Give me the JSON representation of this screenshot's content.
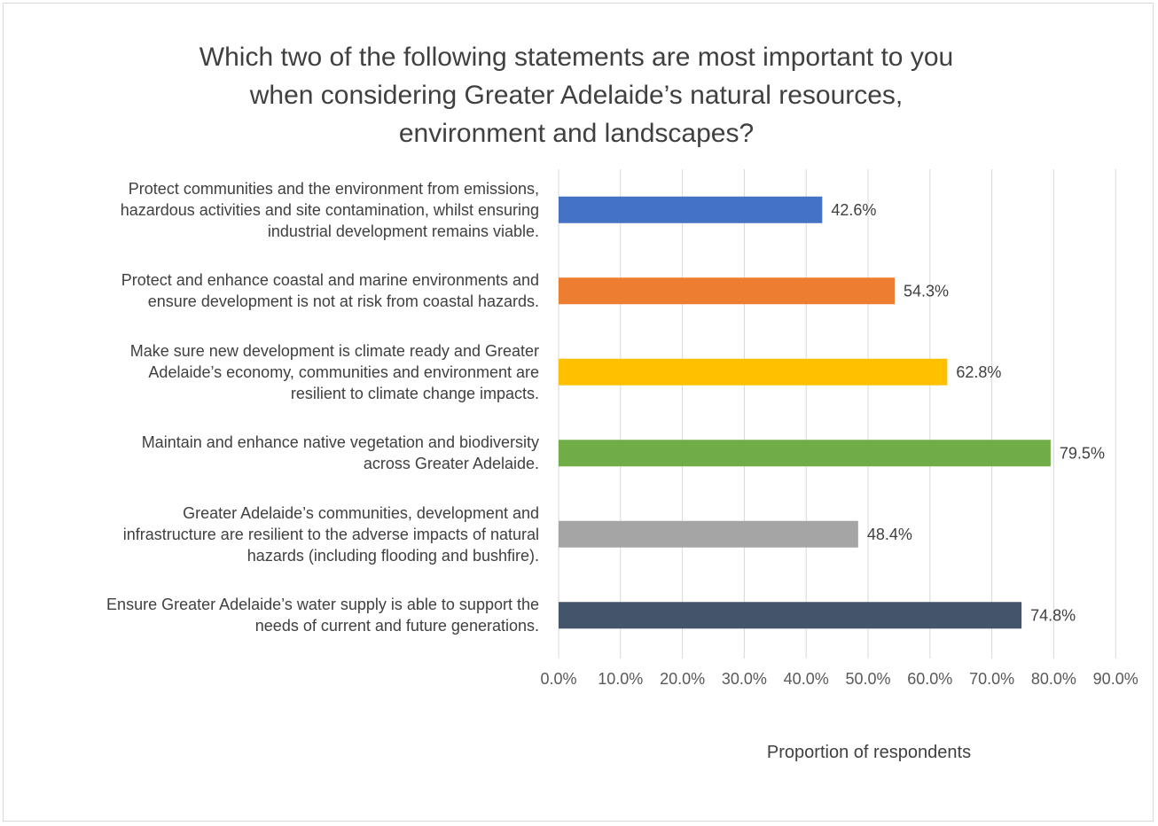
{
  "chart_data": {
    "type": "bar",
    "orientation": "horizontal",
    "title": "Which two of the following statements are most important to you when considering Greater Adelaide’s natural resources, environment and landscapes?",
    "title_lines": [
      "Which two of the following statements are most important to you",
      "when considering Greater Adelaide’s natural resources,",
      "environment and landscapes?"
    ],
    "xlabel": "Proportion of respondents",
    "ylabel": "",
    "xlim": [
      0,
      90
    ],
    "xticks": [
      0,
      10,
      20,
      30,
      40,
      50,
      60,
      70,
      80,
      90
    ],
    "xtick_labels": [
      "0.0%",
      "10.0%",
      "20.0%",
      "30.0%",
      "40.0%",
      "50.0%",
      "60.0%",
      "70.0%",
      "80.0%",
      "90.0%"
    ],
    "grid": true,
    "legend": "none",
    "categories": [
      {
        "lines": [
          "Protect communities and the environment from emissions,",
          "hazardous activities and site contamination, whilst ensuring",
          "industrial development remains viable."
        ],
        "value": 42.6,
        "label": "42.6%",
        "color": "#4472c4"
      },
      {
        "lines": [
          "Protect and enhance coastal and marine environments and",
          "ensure development is not at risk from coastal hazards."
        ],
        "value": 54.3,
        "label": "54.3%",
        "color": "#ed7d31"
      },
      {
        "lines": [
          "Make sure new development is climate ready and Greater",
          "Adelaide’s economy, communities and environment are",
          "resilient to climate change impacts."
        ],
        "value": 62.8,
        "label": "62.8%",
        "color": "#ffc000"
      },
      {
        "lines": [
          "Maintain and enhance native vegetation and biodiversity",
          "across Greater Adelaide."
        ],
        "value": 79.5,
        "label": "79.5%",
        "color": "#70ad47"
      },
      {
        "lines": [
          "Greater Adelaide’s communities, development and",
          "infrastructure are resilient to the adverse impacts of natural",
          "hazards (including flooding and bushfire)."
        ],
        "value": 48.4,
        "label": "48.4%",
        "color": "#a5a5a5"
      },
      {
        "lines": [
          "Ensure Greater Adelaide’s water supply is able to support the",
          "needs of current and future generations."
        ],
        "value": 74.8,
        "label": "74.8%",
        "color": "#44546a"
      }
    ]
  }
}
